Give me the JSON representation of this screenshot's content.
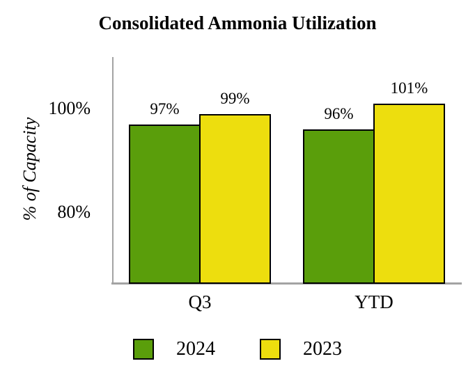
{
  "chart_data": {
    "type": "bar",
    "title": "Consolidated Ammonia Utilization",
    "categories": [
      "Q3",
      "YTD"
    ],
    "series": [
      {
        "name": "2024",
        "color": "#5A9E0B",
        "values": [
          97,
          96
        ],
        "labels": [
          "97%",
          "96%"
        ]
      },
      {
        "name": "2023",
        "color": "#EDDE0E",
        "values": [
          99,
          101
        ],
        "labels": [
          "99%",
          "101%"
        ]
      }
    ],
    "ylabel": "% of Capacity",
    "yticks": [
      {
        "value": 100,
        "label": "100%"
      },
      {
        "value": 80,
        "label": "80%"
      }
    ],
    "ylim": [
      66.5,
      110
    ],
    "grid": false,
    "legend_position": "bottom",
    "colors": {
      "bar_border": "#000000",
      "axis": "#A3A3A3",
      "text": "#000000"
    }
  }
}
